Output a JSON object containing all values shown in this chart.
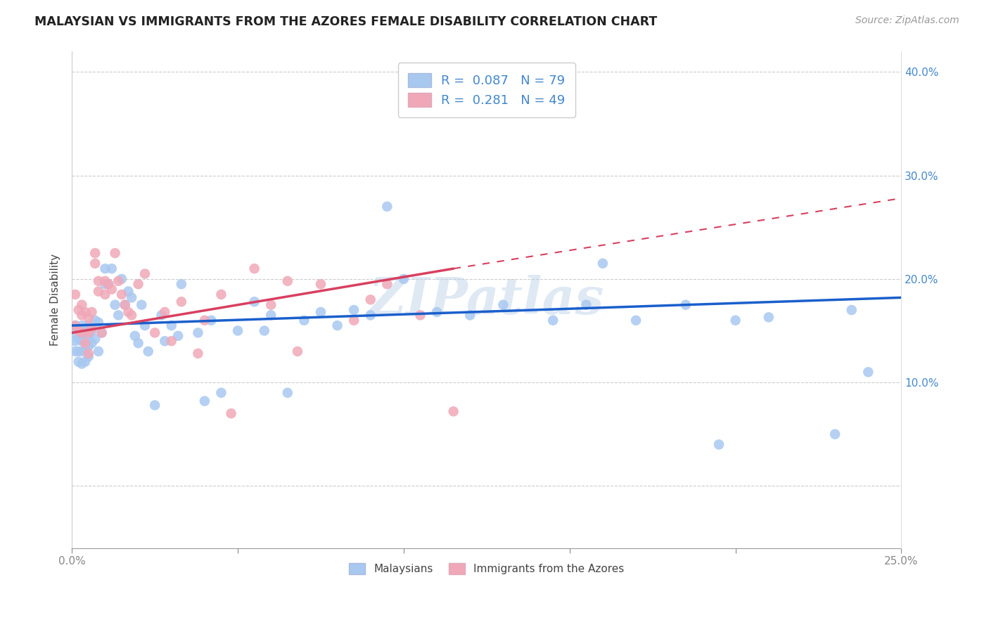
{
  "title": "MALAYSIAN VS IMMIGRANTS FROM THE AZORES FEMALE DISABILITY CORRELATION CHART",
  "source": "Source: ZipAtlas.com",
  "ylabel": "Female Disability",
  "xlim": [
    0.0,
    0.25
  ],
  "ylim": [
    -0.06,
    0.42
  ],
  "yticks": [
    0.0,
    0.1,
    0.2,
    0.3,
    0.4
  ],
  "ytick_labels": [
    "",
    "10.0%",
    "20.0%",
    "30.0%",
    "40.0%"
  ],
  "xticks": [
    0.0,
    0.05,
    0.1,
    0.15,
    0.2,
    0.25
  ],
  "xtick_labels": [
    "0.0%",
    "",
    "",
    "",
    "",
    "25.0%"
  ],
  "r_malaysian": 0.087,
  "n_malaysian": 79,
  "r_azores": 0.281,
  "n_azores": 49,
  "color_malaysian": "#a8c8f0",
  "color_azores": "#f0a8b8",
  "line_color_malaysian": "#1a5fcc",
  "line_color_azores": "#d84060",
  "watermark": "ZIPatlas",
  "legend_labels": [
    "Malaysians",
    "Immigrants from the Azores"
  ],
  "malaysian_x": [
    0.001,
    0.001,
    0.001,
    0.001,
    0.002,
    0.002,
    0.002,
    0.002,
    0.003,
    0.003,
    0.003,
    0.003,
    0.003,
    0.004,
    0.004,
    0.004,
    0.004,
    0.005,
    0.005,
    0.005,
    0.005,
    0.006,
    0.006,
    0.007,
    0.007,
    0.008,
    0.008,
    0.009,
    0.01,
    0.01,
    0.011,
    0.012,
    0.013,
    0.014,
    0.015,
    0.016,
    0.017,
    0.018,
    0.019,
    0.02,
    0.021,
    0.022,
    0.023,
    0.025,
    0.027,
    0.028,
    0.03,
    0.032,
    0.033,
    0.038,
    0.04,
    0.042,
    0.045,
    0.05,
    0.055,
    0.058,
    0.06,
    0.065,
    0.07,
    0.075,
    0.08,
    0.085,
    0.09,
    0.095,
    0.1,
    0.11,
    0.12,
    0.13,
    0.145,
    0.155,
    0.16,
    0.17,
    0.185,
    0.195,
    0.2,
    0.21,
    0.23,
    0.235,
    0.24
  ],
  "malaysian_y": [
    0.155,
    0.148,
    0.14,
    0.13,
    0.15,
    0.142,
    0.13,
    0.12,
    0.155,
    0.148,
    0.14,
    0.13,
    0.118,
    0.152,
    0.142,
    0.132,
    0.12,
    0.155,
    0.145,
    0.135,
    0.125,
    0.15,
    0.138,
    0.16,
    0.142,
    0.158,
    0.13,
    0.148,
    0.21,
    0.195,
    0.195,
    0.21,
    0.175,
    0.165,
    0.2,
    0.175,
    0.188,
    0.182,
    0.145,
    0.138,
    0.175,
    0.155,
    0.13,
    0.078,
    0.165,
    0.14,
    0.155,
    0.145,
    0.195,
    0.148,
    0.082,
    0.16,
    0.09,
    0.15,
    0.178,
    0.15,
    0.165,
    0.09,
    0.16,
    0.168,
    0.155,
    0.17,
    0.165,
    0.27,
    0.2,
    0.168,
    0.165,
    0.175,
    0.16,
    0.175,
    0.215,
    0.16,
    0.175,
    0.04,
    0.16,
    0.163,
    0.05,
    0.17,
    0.11
  ],
  "azores_x": [
    0.001,
    0.001,
    0.002,
    0.002,
    0.003,
    0.003,
    0.003,
    0.004,
    0.004,
    0.005,
    0.005,
    0.005,
    0.006,
    0.006,
    0.007,
    0.007,
    0.008,
    0.008,
    0.009,
    0.01,
    0.01,
    0.011,
    0.012,
    0.013,
    0.014,
    0.015,
    0.016,
    0.017,
    0.018,
    0.02,
    0.022,
    0.025,
    0.028,
    0.03,
    0.033,
    0.038,
    0.04,
    0.045,
    0.048,
    0.055,
    0.06,
    0.065,
    0.068,
    0.075,
    0.085,
    0.09,
    0.095,
    0.105,
    0.115
  ],
  "azores_y": [
    0.185,
    0.155,
    0.17,
    0.15,
    0.175,
    0.165,
    0.148,
    0.168,
    0.138,
    0.162,
    0.148,
    0.128,
    0.168,
    0.152,
    0.225,
    0.215,
    0.198,
    0.188,
    0.148,
    0.198,
    0.185,
    0.195,
    0.19,
    0.225,
    0.198,
    0.185,
    0.175,
    0.168,
    0.165,
    0.195,
    0.205,
    0.148,
    0.168,
    0.14,
    0.178,
    0.128,
    0.16,
    0.185,
    0.07,
    0.21,
    0.175,
    0.198,
    0.13,
    0.195,
    0.16,
    0.18,
    0.195,
    0.165,
    0.072
  ],
  "trend_m_x0": 0.0,
  "trend_m_y0": 0.155,
  "trend_m_x1": 0.25,
  "trend_m_y1": 0.182,
  "trend_a_x0": 0.0,
  "trend_a_y0": 0.148,
  "trend_a_x1": 0.115,
  "trend_a_y1": 0.21,
  "trend_a_ext_x1": 0.25,
  "trend_a_ext_y1": 0.278
}
